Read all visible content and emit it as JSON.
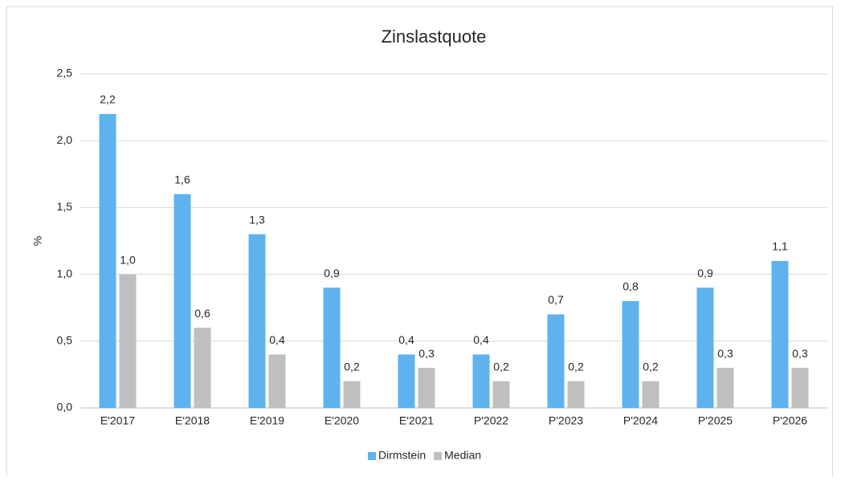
{
  "chart_data": {
    "type": "bar",
    "title": "Zinslastquote",
    "y_label": "%",
    "categories": [
      "E'2017",
      "E'2018",
      "E'2019",
      "E'2020",
      "E'2021",
      "P'2022",
      "P'2023",
      "P'2024",
      "P'2025",
      "P'2026"
    ],
    "series": [
      {
        "name": "Dirmstein",
        "color": "#5eb3ef",
        "values": [
          2.2,
          1.6,
          1.3,
          0.9,
          0.4,
          0.4,
          0.7,
          0.8,
          0.9,
          1.1
        ],
        "value_labels": [
          "2,2",
          "1,6",
          "1,3",
          "0,9",
          "0,4",
          "0,4",
          "0,7",
          "0,8",
          "0,9",
          "1,1"
        ]
      },
      {
        "name": "Median",
        "color": "#bfbfbf",
        "values": [
          1.0,
          0.6,
          0.4,
          0.2,
          0.3,
          0.2,
          0.2,
          0.2,
          0.3,
          0.3
        ],
        "value_labels": [
          "1,0",
          "0,6",
          "0,4",
          "0,2",
          "0,3",
          "0,2",
          "0,2",
          "0,2",
          "0,3",
          "0,3"
        ]
      }
    ],
    "ylim": [
      0,
      2.5
    ],
    "yticks": [
      {
        "value": 0,
        "label": "0,0"
      },
      {
        "value": 0.5,
        "label": "0,5"
      },
      {
        "value": 1,
        "label": "1,0"
      },
      {
        "value": 1.5,
        "label": "1,5"
      },
      {
        "value": 2,
        "label": "2,0"
      },
      {
        "value": 2.5,
        "label": "2,5"
      }
    ],
    "grid": true,
    "legend": "bottom"
  }
}
